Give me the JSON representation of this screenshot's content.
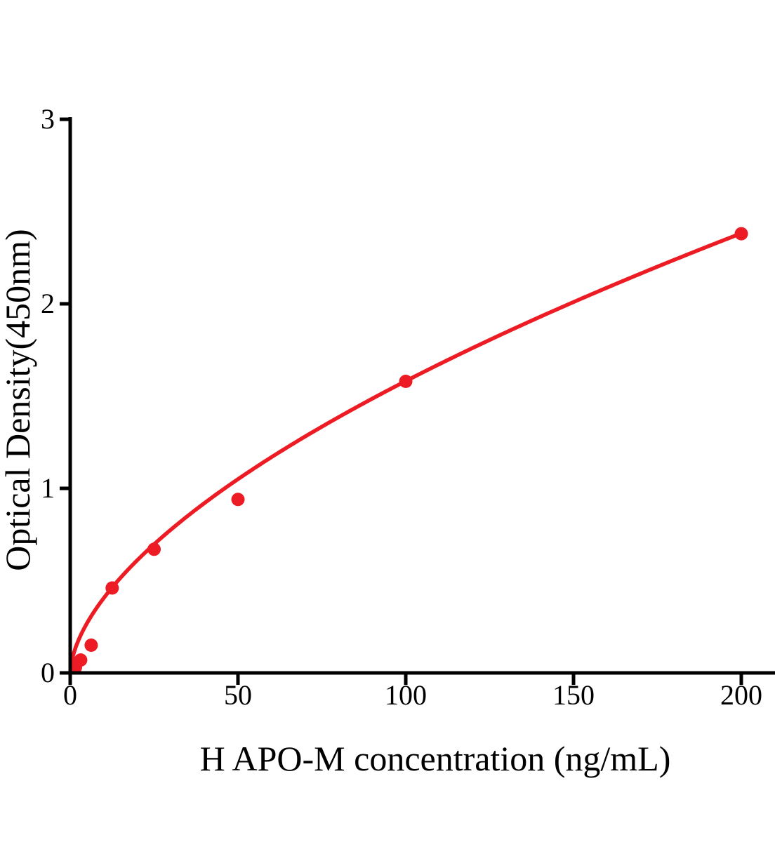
{
  "chart_data": {
    "type": "scatter",
    "title": "",
    "xlabel": "H APO-M concentration (ng/mL)",
    "ylabel": "Optical Density(450nm)",
    "points": {
      "x": [
        1.5625,
        3.125,
        6.25,
        12.5,
        25,
        50,
        100,
        200
      ],
      "y": [
        0.03,
        0.07,
        0.15,
        0.46,
        0.67,
        0.94,
        1.58,
        2.38
      ]
    },
    "fit_curve": {
      "model": "power: OD = a * concentration^b",
      "a": 0.104,
      "b": 0.591,
      "x_range": [
        0,
        200
      ]
    },
    "x_ticks": [
      0,
      50,
      100,
      150,
      200
    ],
    "y_ticks": [
      0,
      1,
      2,
      3
    ],
    "xlim": [
      0,
      210
    ],
    "ylim": [
      0,
      3
    ],
    "grid": false,
    "legend": null,
    "colors": {
      "curve": "#ed1c24",
      "points": "#ed1c24",
      "axis": "#000000",
      "background": "#ffffff"
    }
  }
}
